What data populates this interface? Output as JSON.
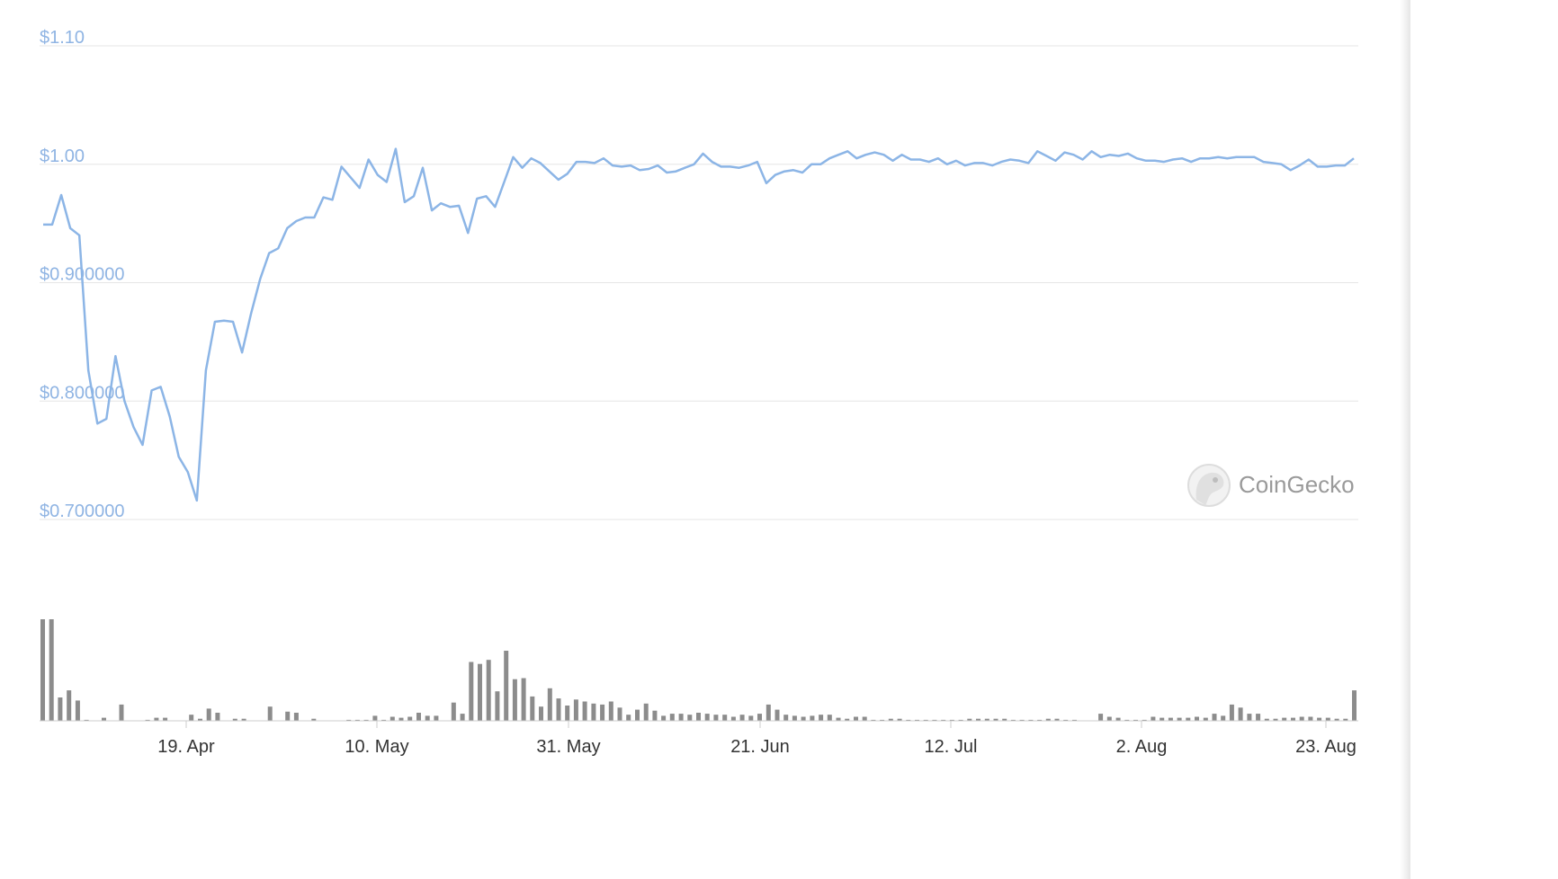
{
  "chart_data": {
    "type": "line",
    "title": "",
    "xlabel": "",
    "ylabel": "",
    "y_ticks": [
      "$1.10",
      "$1.00",
      "$0.900000",
      "$0.800000",
      "$0.700000"
    ],
    "x_ticks": [
      "19. Apr",
      "10. May",
      "31. May",
      "21. Jun",
      "12. Jul",
      "2. Aug",
      "23. Aug"
    ],
    "ylim": [
      0.7,
      1.1
    ],
    "grid": true,
    "colors": {
      "price_line": "#8cb5e6",
      "volume_bars": "#8c8c8c",
      "gridline": "#e6e6e6"
    },
    "watermark": "CoinGecko",
    "price": [
      0.949,
      0.949,
      0.974,
      0.946,
      0.94,
      0.826,
      0.781,
      0.785,
      0.838,
      0.8,
      0.778,
      0.763,
      0.809,
      0.812,
      0.787,
      0.753,
      0.74,
      0.716,
      0.826,
      0.867,
      0.868,
      0.867,
      0.841,
      0.874,
      0.903,
      0.925,
      0.929,
      0.946,
      0.952,
      0.955,
      0.955,
      0.972,
      0.97,
      0.998,
      0.989,
      0.98,
      1.004,
      0.991,
      0.985,
      1.013,
      0.968,
      0.973,
      0.997,
      0.961,
      0.967,
      0.964,
      0.965,
      0.942,
      0.971,
      0.973,
      0.964,
      0.985,
      1.006,
      0.997,
      1.005,
      1.001,
      0.994,
      0.987,
      0.992,
      1.002,
      1.002,
      1.001,
      1.005,
      0.999,
      0.998,
      0.999,
      0.995,
      0.996,
      0.999,
      0.993,
      0.994,
      0.997,
      1.0,
      1.009,
      1.002,
      0.998,
      0.998,
      0.997,
      0.999,
      1.002,
      0.984,
      0.991,
      0.994,
      0.995,
      0.993,
      1.0,
      1.0,
      1.005,
      1.008,
      1.011,
      1.005,
      1.008,
      1.01,
      1.008,
      1.003,
      1.008,
      1.004,
      1.004,
      1.002,
      1.005,
      1.0,
      1.003,
      0.999,
      1.001,
      1.001,
      0.999,
      1.002,
      1.004,
      1.003,
      1.001,
      1.011,
      1.007,
      1.003,
      1.01,
      1.008,
      1.004,
      1.011,
      1.006,
      1.008,
      1.007,
      1.009,
      1.005,
      1.003,
      1.003,
      1.002,
      1.004,
      1.005,
      1.002,
      1.005,
      1.005,
      1.006,
      1.005,
      1.006,
      1.006,
      1.006,
      1.002,
      1.001,
      1.0,
      0.995,
      0.999,
      1.004,
      0.998,
      0.998,
      0.999,
      0.999,
      1.005
    ],
    "volume": [
      1.0,
      1.0,
      0.23,
      0.3,
      0.2,
      0.01,
      0,
      0.03,
      0,
      0.16,
      0,
      0,
      0.01,
      0.03,
      0.03,
      0,
      0,
      0.06,
      0.02,
      0.12,
      0.08,
      0,
      0.02,
      0.02,
      0,
      0,
      0.14,
      0,
      0.09,
      0.08,
      0,
      0.02,
      0,
      0,
      0,
      0.01,
      0.01,
      0.01,
      0.05,
      0.01,
      0.04,
      0.03,
      0.04,
      0.08,
      0.05,
      0.05,
      0,
      0.18,
      0.07,
      0.58,
      0.56,
      0.6,
      0.29,
      0.69,
      0.41,
      0.42,
      0.24,
      0.14,
      0.32,
      0.22,
      0.15,
      0.21,
      0.19,
      0.17,
      0.16,
      0.19,
      0.13,
      0.06,
      0.11,
      0.17,
      0.1,
      0.05,
      0.07,
      0.07,
      0.06,
      0.08,
      0.07,
      0.06,
      0.06,
      0.04,
      0.06,
      0.05,
      0.07,
      0.16,
      0.11,
      0.06,
      0.05,
      0.04,
      0.05,
      0.06,
      0.06,
      0.03,
      0.02,
      0.04,
      0.04,
      0.01,
      0.01,
      0.02,
      0.02,
      0.01,
      0.01,
      0.01,
      0.01,
      0.01,
      0.01,
      0.01,
      0.02,
      0.02,
      0.02,
      0.02,
      0.02,
      0.01,
      0.01,
      0.01,
      0.01,
      0.02,
      0.02,
      0.01,
      0.01,
      0,
      0,
      0.07,
      0.04,
      0.03,
      0.01,
      0.01,
      0.01,
      0.04,
      0.03,
      0.03,
      0.03,
      0.03,
      0.04,
      0.03,
      0.07,
      0.05,
      0.16,
      0.13,
      0.07,
      0.07,
      0.02,
      0.02,
      0.03,
      0.03,
      0.04,
      0.04,
      0.03,
      0.03,
      0.02,
      0.02,
      0.3
    ]
  }
}
